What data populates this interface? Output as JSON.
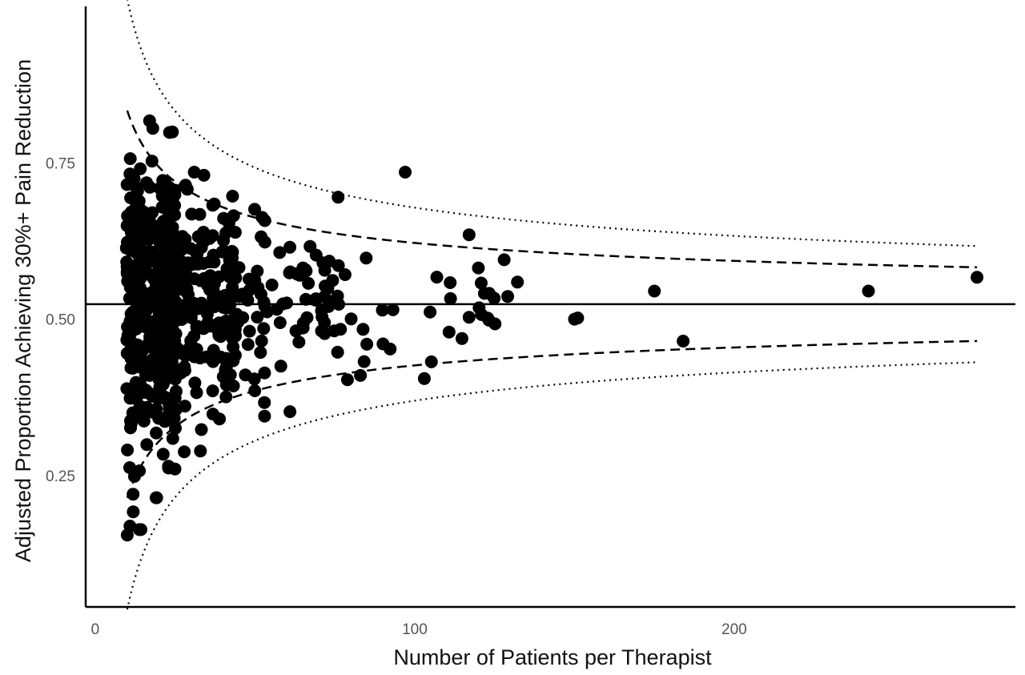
{
  "chart_data": {
    "type": "scatter",
    "title": "",
    "xlabel": "Number of Patients per Therapist",
    "ylabel": "Adjusted Proportion Achieving 30%+ Pain Reduction",
    "xlim": [
      -3,
      288
    ],
    "ylim": [
      0.04,
      1.0
    ],
    "x_ticks": [
      {
        "value": 0,
        "label": "0"
      },
      {
        "value": 100,
        "label": "100"
      },
      {
        "value": 200,
        "label": "200"
      }
    ],
    "y_ticks": [
      {
        "value": 0.25,
        "label": "0.25"
      },
      {
        "value": 0.5,
        "label": "0.50"
      },
      {
        "value": 0.75,
        "label": "0.75"
      }
    ],
    "grid": false,
    "reference_line": {
      "y": 0.524,
      "style": "solid"
    },
    "funnel_limits": [
      {
        "style": "dashed",
        "mean": 0.524,
        "z": 1.96,
        "x_range": [
          10,
          276
        ]
      },
      {
        "style": "dotted",
        "mean": 0.524,
        "z": 3.09,
        "x_range": [
          10,
          276
        ]
      }
    ],
    "highlighted_points": [
      {
        "x": 97,
        "y": 0.735
      },
      {
        "x": 175,
        "y": 0.545
      },
      {
        "x": 184,
        "y": 0.465
      },
      {
        "x": 242,
        "y": 0.545
      },
      {
        "x": 276,
        "y": 0.567
      },
      {
        "x": 117,
        "y": 0.635
      },
      {
        "x": 128,
        "y": 0.595
      },
      {
        "x": 103,
        "y": 0.405
      },
      {
        "x": 10,
        "y": 0.155
      },
      {
        "x": 18,
        "y": 0.805
      },
      {
        "x": 53,
        "y": 0.345
      },
      {
        "x": 150,
        "y": 0.5
      },
      {
        "x": 151,
        "y": 0.502
      },
      {
        "x": 83,
        "y": 0.41
      },
      {
        "x": 85,
        "y": 0.46
      },
      {
        "x": 76,
        "y": 0.695
      },
      {
        "x": 31,
        "y": 0.735
      },
      {
        "x": 34,
        "y": 0.73
      }
    ],
    "points_note": "Approx. 700 therapists; points concentrated at 10-80 patients with proportions spread within the funnel limits",
    "points_seed": 12345,
    "points_count": 700
  }
}
